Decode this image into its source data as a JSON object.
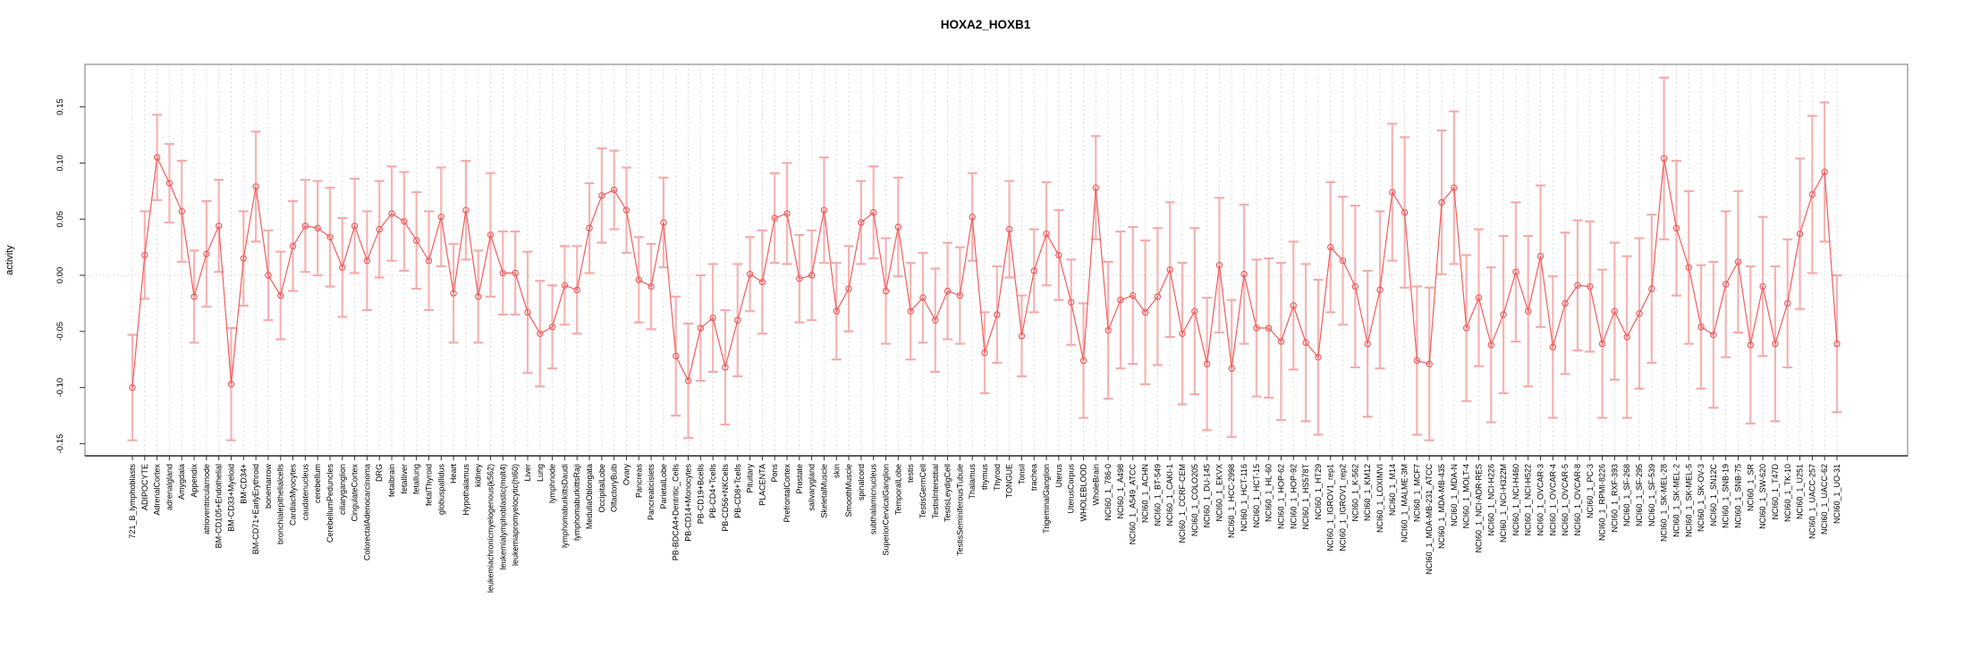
{
  "title": "HOXA2_HOXB1",
  "chart_data": {
    "type": "line",
    "title": "HOXA2_HOXB1",
    "xlabel": "",
    "ylabel": "activity",
    "ylim": [
      -0.164,
      0.186
    ],
    "yticks": [
      0.15,
      0.1,
      0.05,
      0.0,
      -0.05,
      -0.1,
      -0.15
    ],
    "ytick_labels": [
      "0.15",
      "0.10",
      "0.05",
      "0.00",
      "-0.05",
      "-0.10",
      "-0.15"
    ],
    "grid": "vertical dashed gridline per category; dotted horizontal line at y=0",
    "legend": "none",
    "series_name": "activity",
    "point_style": "open-circle",
    "colors": {
      "series": "#f25c5c",
      "error_bar": "#f5a8a8",
      "gridline": "#dcdcdc",
      "zero_line": "#c9c9c9",
      "box": "#9c9c9c",
      "axis": "#333333",
      "text": "#000000",
      "background": "#ffffff"
    },
    "categories": [
      "721_B_lymphoblasts",
      "ADIPOCYTE",
      "AdrenalCortex",
      "adrenalgland",
      "Amygdala",
      "Appendix",
      "atrioventricularnode",
      "BM-CD105+Endothelial",
      "BM-CD33+Myeloid",
      "BM-CD34+",
      "BM-CD71+EarlyErythroid",
      "bonemarrow",
      "bronchialepithelialcells",
      "CardiacMyocytes",
      "caudatenucleus",
      "cerebellum",
      "CerebellumPeduncles",
      "ciliaryganglion",
      "CingulateCortex",
      "ColorectalAdenocarcinoma",
      "DRG",
      "fetalbrain",
      "fetalliver",
      "fetallung",
      "fetalThyroid",
      "globuspallidus",
      "Heart",
      "Hypothalamus",
      "kidney",
      "leukemiachronicmyelogenous(k562)",
      "leukemialymphoblastic(molt4)",
      "leukemiapromyelocytic(hl60)",
      "Liver",
      "Lung",
      "lymphnode",
      "lymphomaburkittsDaudi",
      "lymphomaburkittsRaji",
      "MedullaOblongata",
      "OccipitalLobe",
      "OlfactoryBulb",
      "Ovary",
      "Pancreas",
      "Pancreaticislets",
      "ParietalLobe",
      "PB-BDCA4+Dentritic_Cells",
      "PB-CD14+Monocytes",
      "PB-CD19+Bcells",
      "PB-CD4+Tcells",
      "PB-CD56+NKCells",
      "PB-CD8+Tcells",
      "Pituitary",
      "PLACENTA",
      "Pons",
      "PrefrontalCortex",
      "Prostate",
      "salivarygland",
      "SkeletalMuscle",
      "skin",
      "SmoothMuscle",
      "spinalcord",
      "subthalamicnucleus",
      "SuperiorCervicalGanglion",
      "TemporalLobe",
      "testis",
      "TestisGermCell",
      "TestisInterstitial",
      "TestisLeydigCell",
      "TestisSeminiferousTubule",
      "Thalamus",
      "thymus",
      "Thyroid",
      "TONGUE",
      "Tonsil",
      "trachea",
      "TrigeminalGanglion",
      "Uterus",
      "UterusCorpus",
      "WHOLEBLOOD",
      "WholeBrain",
      "NCI60_1_786-0",
      "NCI60_1_A498",
      "NCI60_1_A549_ATCC",
      "NCI60_1_ACHN",
      "NCI60_1_BT-549",
      "NCI60_1_CAKI-1",
      "NCI60_1_CCRF-CEM",
      "NCI60_1_COLO205",
      "NCI60_1_DU-145",
      "NCI60_1_EKVX",
      "NCI60_1_HCC-2998",
      "NCI60_1_HCT-116",
      "NCI60_1_HCT-15",
      "NCI60_1_HL-60",
      "NCI60_1_HOP-62",
      "NCI60_1_HOP-92",
      "NCI60_1_HS578T",
      "NCI60_1_HT29",
      "NCI60_1_IGROV1_rep1",
      "NCI60_1_IGROV1_rep2",
      "NCI60_1_K-562",
      "NCI60_1_KM12",
      "NCI60_1_LOXIMVI",
      "NCI60_1_M14",
      "NCI60_1_MALME-3M",
      "NCI60_1_MCF7",
      "NCI60_1_MDA-MB-231_ATCC",
      "NCI60_1_MDA-MB-435",
      "NCI60_1_MDA-N",
      "NCI60_1_MOLT-4",
      "NCI60_1_NCI-ADR-RES",
      "NCI60_1_NCI-H226",
      "NCI60_1_NCI-H322M",
      "NCI60_1_NCI-H460",
      "NCI60_1_NCI-H522",
      "NCI60_1_OVCAR-3",
      "NCI60_1_OVCAR-4",
      "NCI60_1_OVCAR-5",
      "NCI60_1_OVCAR-8",
      "NCI60_1_PC-3",
      "NCI60_1_RPMI-8226",
      "NCI60_1_RXF-393",
      "NCI60_1_SF-268",
      "NCI60_1_SF-295",
      "NCI60_1_SF-539",
      "NCI60_1_SK-MEL-28",
      "NCI60_1_SK-MEL-2",
      "NCI60_1_SK-MEL-5",
      "NCI60_1_SK-OV-3",
      "NCI60_1_SN12C",
      "NCI60_1_SNB-19",
      "NCI60_1_SNB-75",
      "NCI60_1_SR",
      "NCI60_1_SW-620",
      "NCI60_1_T47D",
      "NCI60_1_TK-10",
      "NCI60_1_U251",
      "NCI60_1_UACC-257",
      "NCI60_1_UACC-62",
      "NCI60_1_UO-31"
    ],
    "values": [
      -0.1,
      0.018,
      0.105,
      0.082,
      0.057,
      -0.019,
      0.019,
      0.044,
      -0.097,
      0.015,
      0.079,
      0.0,
      -0.018,
      0.026,
      0.044,
      0.042,
      0.034,
      0.007,
      0.044,
      0.013,
      0.041,
      0.055,
      0.048,
      0.031,
      0.013,
      0.052,
      -0.016,
      0.058,
      -0.019,
      0.036,
      0.002,
      0.002,
      -0.033,
      -0.052,
      -0.046,
      -0.009,
      -0.013,
      0.042,
      0.071,
      0.076,
      0.058,
      -0.004,
      -0.01,
      0.047,
      -0.072,
      -0.094,
      -0.047,
      -0.038,
      -0.082,
      -0.04,
      0.001,
      -0.006,
      0.051,
      0.055,
      -0.003,
      0.0,
      0.058,
      -0.032,
      -0.012,
      0.047,
      0.056,
      -0.014,
      0.043,
      -0.032,
      -0.02,
      -0.04,
      -0.014,
      -0.018,
      0.052,
      -0.069,
      -0.035,
      0.041,
      -0.054,
      0.004,
      0.037,
      0.018,
      -0.024,
      -0.076,
      0.078,
      -0.049,
      -0.022,
      -0.018,
      -0.033,
      -0.019,
      0.005,
      -0.052,
      -0.032,
      -0.079,
      0.009,
      -0.083,
      0.001,
      -0.047,
      -0.047,
      -0.059,
      -0.027,
      -0.06,
      -0.073,
      0.025,
      0.013,
      -0.01,
      -0.061,
      -0.013,
      0.074,
      0.056,
      -0.076,
      -0.079,
      0.065,
      0.078,
      -0.047,
      -0.02,
      -0.062,
      -0.035,
      0.003,
      -0.032,
      0.017,
      -0.064,
      -0.025,
      -0.009,
      -0.01,
      -0.061,
      -0.032,
      -0.055,
      -0.034,
      -0.012,
      0.104,
      0.042,
      0.007,
      -0.046,
      -0.053,
      -0.008,
      0.012,
      -0.062,
      -0.01,
      -0.061,
      -0.025,
      0.037,
      0.072,
      0.092,
      -0.061
    ],
    "err_halfwidth": [
      0.047,
      0.039,
      0.038,
      0.035,
      0.045,
      0.041,
      0.047,
      0.041,
      0.05,
      0.042,
      0.049,
      0.04,
      0.039,
      0.04,
      0.041,
      0.042,
      0.044,
      0.044,
      0.042,
      0.044,
      0.043,
      0.042,
      0.044,
      0.043,
      0.044,
      0.044,
      0.044,
      0.044,
      0.041,
      0.055,
      0.037,
      0.037,
      0.054,
      0.047,
      0.037,
      0.035,
      0.039,
      0.04,
      0.042,
      0.035,
      0.038,
      0.038,
      0.038,
      0.04,
      0.053,
      0.051,
      0.047,
      0.048,
      0.051,
      0.05,
      0.033,
      0.046,
      0.04,
      0.045,
      0.039,
      0.04,
      0.047,
      0.043,
      0.038,
      0.037,
      0.041,
      0.047,
      0.044,
      0.043,
      0.04,
      0.046,
      0.043,
      0.043,
      0.039,
      0.036,
      0.043,
      0.043,
      0.036,
      0.037,
      0.046,
      0.04,
      0.038,
      0.051,
      0.046,
      0.061,
      0.061,
      0.061,
      0.064,
      0.061,
      0.06,
      0.063,
      0.074,
      0.059,
      0.06,
      0.061,
      0.062,
      0.061,
      0.062,
      0.07,
      0.057,
      0.07,
      0.069,
      0.058,
      0.057,
      0.072,
      0.065,
      0.07,
      0.061,
      0.067,
      0.066,
      0.068,
      0.064,
      0.068,
      0.065,
      0.061,
      0.069,
      0.07,
      0.062,
      0.067,
      0.063,
      0.063,
      0.063,
      0.058,
      0.058,
      0.066,
      0.061,
      0.072,
      0.067,
      0.066,
      0.072,
      0.06,
      0.068,
      0.055,
      0.065,
      0.065,
      0.063,
      0.07,
      0.062,
      0.069,
      0.057,
      0.067,
      0.07,
      0.062,
      0.061
    ]
  }
}
